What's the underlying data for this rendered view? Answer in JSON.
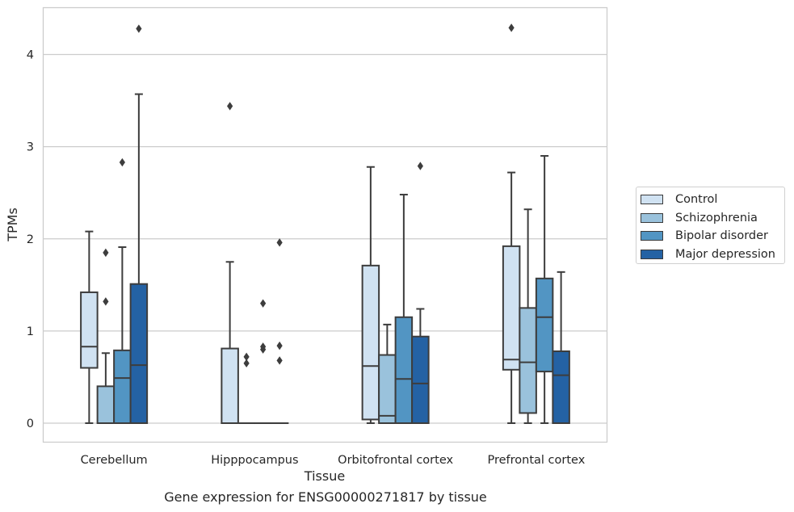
{
  "caption": "Gene expression for ENSG00000271817 by tissue",
  "chart_data": {
    "type": "box",
    "xlabel": "Tissue",
    "ylabel": "TPMs",
    "ylim": [
      -0.21,
      4.52
    ],
    "yticks": [
      0,
      1,
      2,
      3,
      4
    ],
    "grid": "horizontal",
    "legend_position": "right",
    "categories": [
      "Cerebellum",
      "Hipppocampus",
      "Orbitofrontal cortex",
      "Prefrontal cortex"
    ],
    "series": [
      {
        "name": "Control",
        "color": "#d0e2f2",
        "boxes": [
          {
            "whisker_low": 0,
            "q1": 0.6,
            "median": 0.83,
            "q3": 1.42,
            "whisker_high": 2.08,
            "outliers": []
          },
          {
            "whisker_low": 0,
            "q1": 0,
            "median": 0,
            "q3": 0.81,
            "whisker_high": 1.75,
            "outliers": [
              3.44
            ]
          },
          {
            "whisker_low": 0,
            "q1": 0.04,
            "median": 0.62,
            "q3": 1.71,
            "whisker_high": 2.78,
            "outliers": []
          },
          {
            "whisker_low": 0,
            "q1": 0.58,
            "median": 0.69,
            "q3": 1.92,
            "whisker_high": 2.72,
            "outliers": [
              4.29
            ]
          }
        ]
      },
      {
        "name": "Schizophrenia",
        "color": "#9ac2dc",
        "boxes": [
          {
            "whisker_low": 0,
            "q1": 0,
            "median": 0,
            "q3": 0.4,
            "whisker_high": 0.76,
            "outliers": [
              1.32,
              1.85
            ]
          },
          {
            "whisker_low": 0,
            "q1": 0,
            "median": 0,
            "q3": 0,
            "whisker_high": 0,
            "outliers": [
              0.65,
              0.72
            ]
          },
          {
            "whisker_low": 0,
            "q1": 0,
            "median": 0.08,
            "q3": 0.74,
            "whisker_high": 1.07,
            "outliers": []
          },
          {
            "whisker_low": 0,
            "q1": 0.11,
            "median": 0.66,
            "q3": 1.25,
            "whisker_high": 2.32,
            "outliers": []
          }
        ]
      },
      {
        "name": "Bipolar disorder",
        "color": "#5295c3",
        "boxes": [
          {
            "whisker_low": 0,
            "q1": 0,
            "median": 0.49,
            "q3": 0.79,
            "whisker_high": 1.91,
            "outliers": [
              2.83
            ]
          },
          {
            "whisker_low": 0,
            "q1": 0,
            "median": 0,
            "q3": 0,
            "whisker_high": 0,
            "outliers": [
              0.8,
              0.83,
              1.3
            ]
          },
          {
            "whisker_low": 0,
            "q1": 0,
            "median": 0.48,
            "q3": 1.15,
            "whisker_high": 2.48,
            "outliers": []
          },
          {
            "whisker_low": 0,
            "q1": 0.56,
            "median": 1.15,
            "q3": 1.57,
            "whisker_high": 2.9,
            "outliers": []
          }
        ]
      },
      {
        "name": "Major depression",
        "color": "#2462a4",
        "boxes": [
          {
            "whisker_low": 0,
            "q1": 0,
            "median": 0.63,
            "q3": 1.51,
            "whisker_high": 3.57,
            "outliers": [
              4.28
            ]
          },
          {
            "whisker_low": 0,
            "q1": 0,
            "median": 0,
            "q3": 0,
            "whisker_high": 0,
            "outliers": [
              0.68,
              0.84,
              1.96
            ]
          },
          {
            "whisker_low": 0,
            "q1": 0,
            "median": 0.43,
            "q3": 0.94,
            "whisker_high": 1.24,
            "outliers": [
              2.79
            ]
          },
          {
            "whisker_low": 0,
            "q1": 0,
            "median": 0.52,
            "q3": 0.78,
            "whisker_high": 1.64,
            "outliers": []
          }
        ]
      }
    ]
  }
}
